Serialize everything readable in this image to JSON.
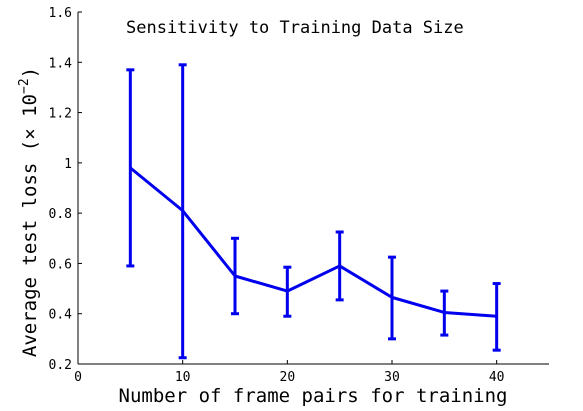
{
  "chart_data": {
    "type": "line",
    "title": "Sensitivity to Training Data Size",
    "xlabel": "Number of frame pairs for training",
    "ylabel": "Average test loss (× 10",
    "ylabel_exponent": "−2",
    "ylabel_close": ")",
    "xlim": [
      0,
      45
    ],
    "ylim": [
      0.2,
      1.6
    ],
    "xticks": [
      0,
      10,
      20,
      30,
      40
    ],
    "yticks": [
      0.2,
      0.4,
      0.6,
      0.8,
      1,
      1.2,
      1.4,
      1.6
    ],
    "xtick_labels": [
      "0",
      "10",
      "20",
      "30",
      "40"
    ],
    "ytick_labels": [
      "0.2",
      "0.4",
      "0.6",
      "0.8",
      "1",
      "1.2",
      "1.4",
      "1.6"
    ],
    "series": [
      {
        "color": "#0000ee",
        "x": [
          5,
          10,
          15,
          20,
          25,
          30,
          35,
          40
        ],
        "y": [
          0.98,
          0.81,
          0.55,
          0.49,
          0.59,
          0.465,
          0.405,
          0.39
        ],
        "err_low": [
          0.59,
          0.225,
          0.4,
          0.39,
          0.455,
          0.3,
          0.315,
          0.255
        ],
        "err_high": [
          1.37,
          1.39,
          0.7,
          0.585,
          0.725,
          0.625,
          0.49,
          0.52
        ]
      }
    ],
    "grid": false
  }
}
